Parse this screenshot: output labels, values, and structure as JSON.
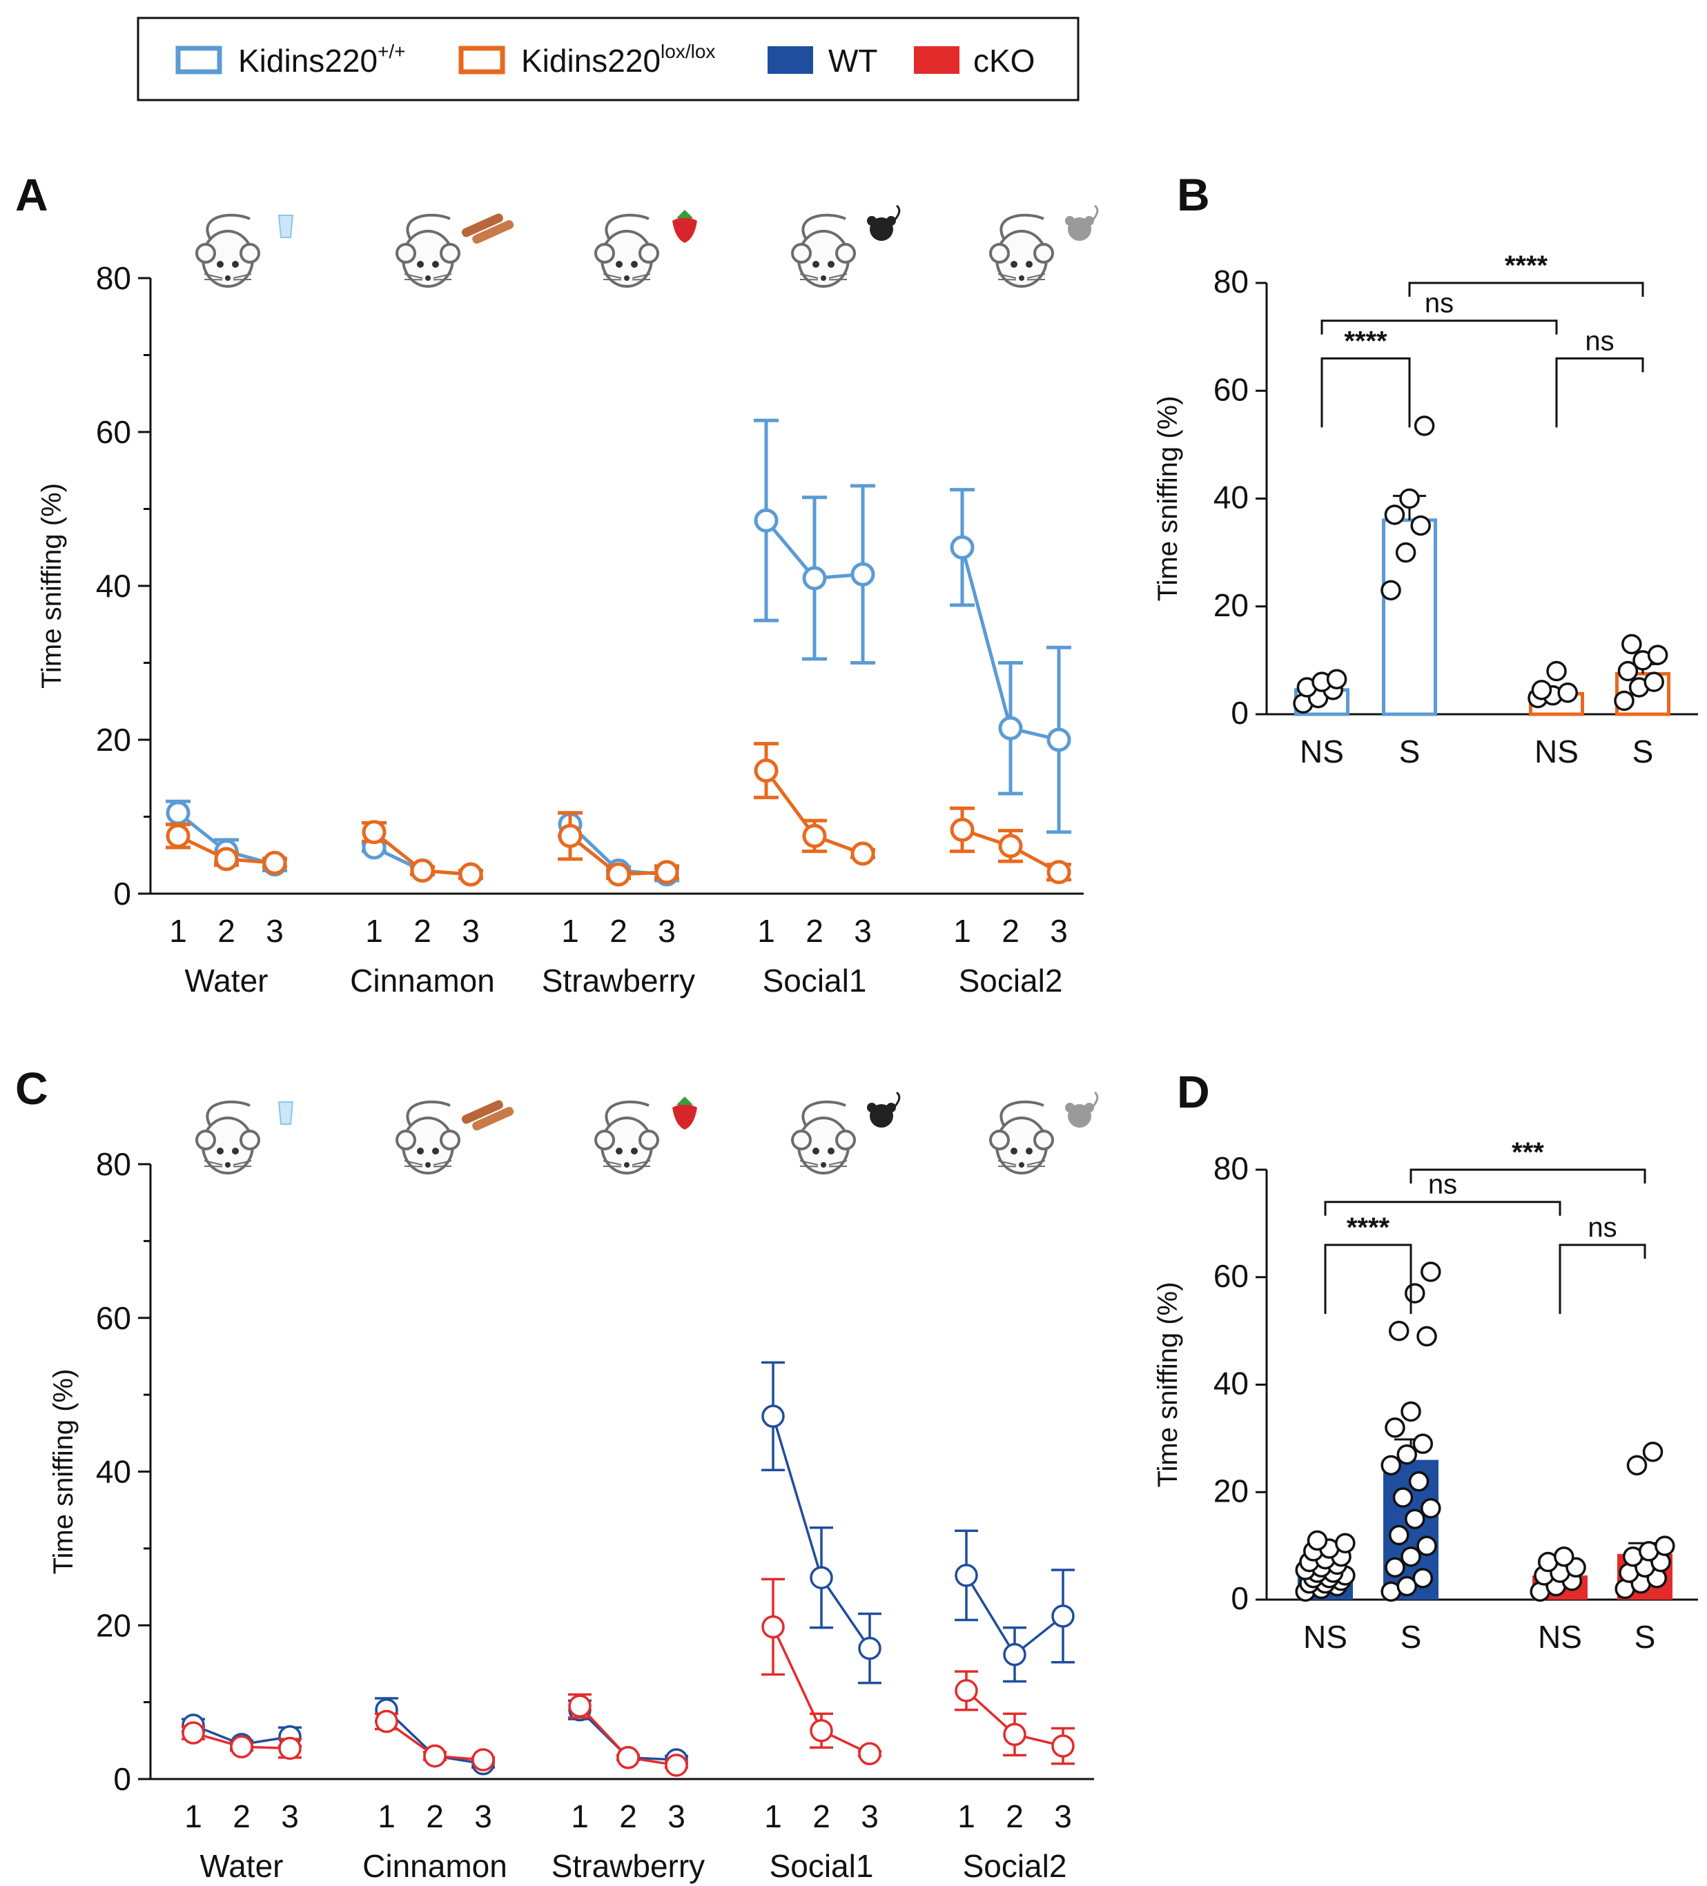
{
  "legend": {
    "items": [
      {
        "name": "Kidins220",
        "sup": "+/+",
        "style": "open",
        "color": "#5b9bd5"
      },
      {
        "name": "Kidins220",
        "sup": "lox/lox",
        "style": "open",
        "color": "#e8691e"
      },
      {
        "name": "WT",
        "sup": "",
        "style": "filled",
        "color": "#1f4e9e"
      },
      {
        "name": "cKO",
        "sup": "",
        "style": "filled",
        "color": "#e42b2b"
      }
    ]
  },
  "chart_data": [
    {
      "panel": "A",
      "type": "line",
      "ylabel": "Time sniffing (%)",
      "ylim": [
        0,
        80
      ],
      "yticks": [
        0,
        20,
        40,
        60,
        80
      ],
      "groups": [
        "Water",
        "Cinnamon",
        "Strawberry",
        "Social1",
        "Social2"
      ],
      "trials": [
        "1",
        "2",
        "3"
      ],
      "series": [
        {
          "name": "Kidins220+/+",
          "color": "#5b9bd5",
          "values": [
            [
              10.5,
              5.5,
              3.8
            ],
            [
              6.0,
              3.0,
              2.5
            ],
            [
              9.0,
              3.0,
              2.5
            ],
            [
              48.5,
              41.0,
              41.5
            ],
            [
              45.0,
              21.5,
              20.0
            ]
          ],
          "errors": [
            [
              1.5,
              1.5,
              0.8
            ],
            [
              0.5,
              0.5,
              0.5
            ],
            [
              1.5,
              0.5,
              0.8
            ],
            [
              13.0,
              10.5,
              11.5
            ],
            [
              7.5,
              8.5,
              12.0
            ]
          ]
        },
        {
          "name": "Kidins220lox/lox",
          "color": "#e8691e",
          "values": [
            [
              7.5,
              4.5,
              4.0
            ],
            [
              8.0,
              3.0,
              2.5
            ],
            [
              7.5,
              2.5,
              2.8
            ],
            [
              16.0,
              7.5,
              5.2
            ],
            [
              8.3,
              6.2,
              2.8
            ]
          ],
          "errors": [
            [
              1.5,
              0.8,
              0.5
            ],
            [
              1.2,
              0.5,
              0.5
            ],
            [
              3.0,
              0.5,
              0.8
            ],
            [
              3.5,
              2.0,
              0.5
            ],
            [
              2.8,
              2.0,
              1.0
            ]
          ]
        }
      ]
    },
    {
      "panel": "B",
      "type": "bar",
      "ylabel": "Time sniffing (%)",
      "ylim": [
        0,
        80
      ],
      "yticks": [
        0,
        20,
        40,
        60,
        80
      ],
      "categories": [
        "NS",
        "S",
        "NS",
        "S"
      ],
      "bar_style": "open",
      "colors": [
        "#5b9bd5",
        "#5b9bd5",
        "#e8691e",
        "#e8691e"
      ],
      "values": [
        4.5,
        36.0,
        3.8,
        7.5
      ],
      "errors": [
        0.8,
        4.5,
        0.8,
        1.8
      ],
      "points": [
        [
          2.0,
          3.0,
          4.5,
          5.0,
          6.0,
          6.5
        ],
        [
          23.0,
          30.0,
          35.0,
          37.0,
          40.0,
          53.5
        ],
        [
          3.0,
          3.5,
          4.0,
          4.5,
          8.0
        ],
        [
          2.5,
          5.0,
          6.0,
          8.0,
          10.0,
          11.0,
          13.0
        ]
      ],
      "significance": [
        {
          "pair": [
            0,
            1
          ],
          "label": "****",
          "level": 66
        },
        {
          "pair": [
            2,
            3
          ],
          "label": "ns",
          "level": 66
        },
        {
          "pair": [
            0,
            2
          ],
          "label": "ns",
          "level": 73
        },
        {
          "pair": [
            1,
            3
          ],
          "label": "****",
          "level": 80
        }
      ]
    },
    {
      "panel": "C",
      "type": "line",
      "ylabel": "Time sniffing (%)",
      "ylim": [
        0,
        80
      ],
      "yticks": [
        0,
        20,
        40,
        60,
        80
      ],
      "groups": [
        "Water",
        "Cinnamon",
        "Strawberry",
        "Social1",
        "Social2"
      ],
      "trials": [
        "1",
        "2",
        "3"
      ],
      "series": [
        {
          "name": "WT",
          "color": "#1f4e9e",
          "values": [
            [
              7.0,
              4.5,
              5.5
            ],
            [
              9.0,
              3.0,
              2.0
            ],
            [
              9.0,
              2.8,
              2.5
            ],
            [
              47.2,
              26.2,
              17.0
            ],
            [
              26.5,
              16.2,
              21.2
            ]
          ],
          "errors": [
            [
              0.8,
              0.5,
              1.2
            ],
            [
              1.5,
              0.5,
              0.5
            ],
            [
              1.2,
              0.3,
              0.5
            ],
            [
              7.0,
              6.5,
              4.5
            ],
            [
              5.8,
              3.5,
              6.0
            ]
          ]
        },
        {
          "name": "cKO",
          "color": "#e42b2b",
          "values": [
            [
              6.0,
              4.2,
              4.0
            ],
            [
              7.5,
              3.0,
              2.5
            ],
            [
              9.5,
              2.8,
              1.8
            ],
            [
              19.8,
              6.3,
              3.3
            ],
            [
              11.5,
              5.8,
              4.3
            ]
          ],
          "errors": [
            [
              0.8,
              0.5,
              1.2
            ],
            [
              1.0,
              0.5,
              0.3
            ],
            [
              1.5,
              0.3,
              0.3
            ],
            [
              6.2,
              2.2,
              0.3
            ],
            [
              2.5,
              2.7,
              2.3
            ]
          ]
        }
      ]
    },
    {
      "panel": "D",
      "type": "bar",
      "ylabel": "Time sniffing (%)",
      "ylim": [
        0,
        80
      ],
      "yticks": [
        0,
        20,
        40,
        60,
        80
      ],
      "categories": [
        "NS",
        "S",
        "NS",
        "S"
      ],
      "bar_style": "filled",
      "colors": [
        "#1f4e9e",
        "#1f4e9e",
        "#e42b2b",
        "#e42b2b"
      ],
      "values": [
        5.0,
        26.0,
        4.5,
        8.5
      ],
      "errors": [
        0.8,
        3.8,
        0.8,
        2.0
      ],
      "points": [
        [
          1.5,
          2.0,
          2.5,
          3.0,
          3.0,
          3.5,
          4.0,
          4.0,
          4.5,
          5.0,
          5.0,
          5.5,
          6.0,
          6.5,
          7.0,
          7.5,
          8.0,
          9.0,
          9.5,
          10.5,
          11.0
        ],
        [
          1.5,
          2.5,
          4.0,
          6.0,
          8.0,
          10.0,
          12.0,
          15.0,
          17.0,
          19.0,
          22.0,
          25.0,
          27.0,
          29.0,
          32.0,
          35.0,
          49.0,
          50.0,
          57.0,
          61.0
        ],
        [
          1.5,
          2.5,
          3.5,
          4.5,
          5.0,
          6.0,
          7.0,
          8.0
        ],
        [
          2.0,
          3.0,
          4.0,
          5.0,
          6.0,
          7.0,
          8.0,
          9.0,
          10.0,
          25.0,
          27.5
        ]
      ],
      "significance": [
        {
          "pair": [
            0,
            1
          ],
          "label": "****",
          "level": 66
        },
        {
          "pair": [
            2,
            3
          ],
          "label": "ns",
          "level": 66
        },
        {
          "pair": [
            0,
            2
          ],
          "label": "ns",
          "level": 74
        },
        {
          "pair": [
            1,
            3
          ],
          "label": "***",
          "level": 80
        }
      ]
    }
  ],
  "icons": [
    {
      "name": "mouse-water-icon",
      "stimulus": "water"
    },
    {
      "name": "mouse-cinnamon-icon",
      "stimulus": "cinnamon"
    },
    {
      "name": "mouse-strawberry-icon",
      "stimulus": "strawberry"
    },
    {
      "name": "mouse-social1-icon",
      "stimulus": "black mouse"
    },
    {
      "name": "mouse-social2-icon",
      "stimulus": "grey mouse"
    }
  ]
}
